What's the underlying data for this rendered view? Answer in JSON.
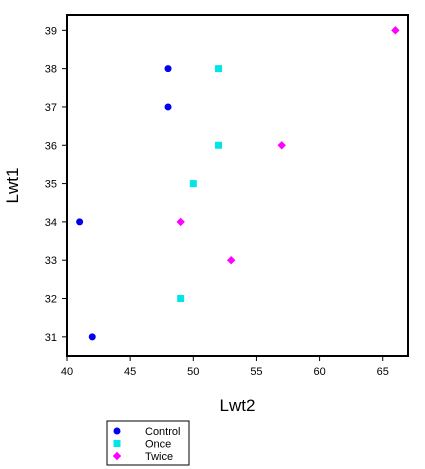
{
  "chart_data": {
    "type": "scatter",
    "xlabel": "Lwt2",
    "ylabel": "Lwt1",
    "xlim": [
      40,
      67
    ],
    "ylim": [
      30.5,
      39.4
    ],
    "xticks": [
      40,
      45,
      50,
      55,
      60,
      65
    ],
    "yticks": [
      31,
      32,
      33,
      34,
      35,
      36,
      37,
      38,
      39
    ],
    "grid": false,
    "legend_position": "bottom-left",
    "series": [
      {
        "name": "Control",
        "marker": "circle",
        "color": "#0000ee",
        "points": [
          {
            "x": 48,
            "y": 38
          },
          {
            "x": 48,
            "y": 37
          },
          {
            "x": 41,
            "y": 34
          },
          {
            "x": 42,
            "y": 31
          }
        ]
      },
      {
        "name": "Once",
        "marker": "square",
        "color": "#00e5e5",
        "points": [
          {
            "x": 52,
            "y": 38
          },
          {
            "x": 52,
            "y": 36
          },
          {
            "x": 50,
            "y": 35
          },
          {
            "x": 49,
            "y": 32
          }
        ]
      },
      {
        "name": "Twice",
        "marker": "diamond",
        "color": "#ff00ff",
        "points": [
          {
            "x": 66,
            "y": 39
          },
          {
            "x": 57,
            "y": 36
          },
          {
            "x": 49,
            "y": 34
          },
          {
            "x": 53,
            "y": 33
          }
        ]
      }
    ]
  }
}
